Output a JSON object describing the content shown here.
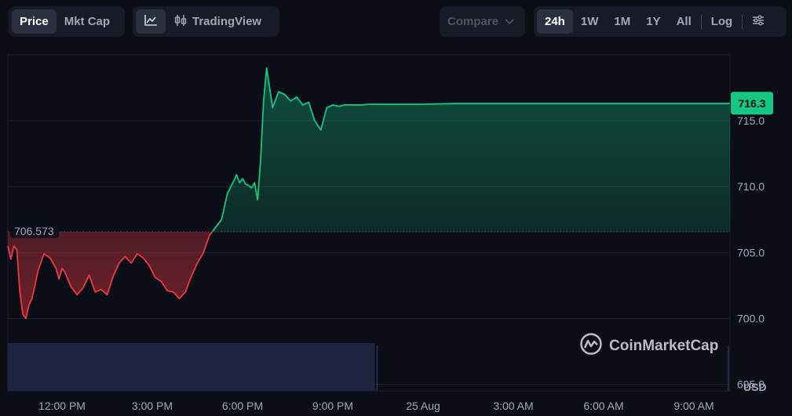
{
  "toolbar": {
    "tabs": [
      "Price",
      "Mkt Cap"
    ],
    "active_tab": "Price",
    "tradingview_label": "TradingView",
    "compare_label": "Compare",
    "ranges": [
      "24h",
      "1W",
      "1M",
      "1Y",
      "All"
    ],
    "active_range": "24h",
    "log_label": "Log"
  },
  "watermark": "CoinMarketCap",
  "colors": {
    "background": "#0b0e17",
    "up": "#16c784",
    "down": "#ea3943",
    "volume": "#1e2340"
  },
  "chart_data": {
    "type": "line",
    "reference_price": 706.573,
    "current_price_label": "716.3",
    "y_ticks": [
      "715.0",
      "710.0",
      "705.0",
      "700.0",
      "695.0"
    ],
    "y_unit": "USD",
    "ylim": [
      694.5,
      720
    ],
    "x_tick_labels": [
      "12:00 PM",
      "3:00 PM",
      "6:00 PM",
      "9:00 PM",
      "25 Aug",
      "3:00 AM",
      "6:00 AM",
      "9:00 AM"
    ],
    "x_tick_hours": [
      12,
      15,
      18,
      21,
      24,
      27,
      30,
      33
    ],
    "x_range_hours": [
      10.2,
      34.2
    ],
    "series": [
      {
        "x": [
          10.2,
          10.3,
          10.4,
          10.5,
          10.6,
          10.7,
          10.8,
          10.9,
          11.0,
          11.1,
          11.2,
          11.4,
          11.6,
          11.8,
          11.9,
          12.0,
          12.1,
          12.3,
          12.5,
          12.7,
          12.9,
          13.1,
          13.3,
          13.5,
          13.7,
          13.9,
          14.1,
          14.3,
          14.5,
          14.7,
          14.9,
          15.1,
          15.3,
          15.5,
          15.7,
          15.9,
          16.1,
          16.3,
          16.5,
          16.7,
          16.9,
          17.1,
          17.3,
          17.5,
          17.7,
          17.8,
          17.9,
          18.0,
          18.1,
          18.2,
          18.3,
          18.4,
          18.5,
          18.6,
          18.7,
          18.8,
          19.0,
          19.2,
          19.4,
          19.6,
          19.8,
          20.0,
          20.2,
          20.4,
          20.6,
          20.8,
          21.0,
          21.2,
          21.4,
          21.6,
          21.7,
          21.8,
          22.0,
          22.2,
          22.5,
          23,
          24,
          25,
          26,
          27,
          28,
          29,
          30,
          31,
          32,
          33,
          34.2
        ],
        "values": [
          705.5,
          704.5,
          705.5,
          705.2,
          702.0,
          700.3,
          700.0,
          701.0,
          701.5,
          702.5,
          703.6,
          704.9,
          704.6,
          703.8,
          703.0,
          703.8,
          703.5,
          702.4,
          701.8,
          702.3,
          703.3,
          702.0,
          702.2,
          701.8,
          703.2,
          704.2,
          704.7,
          704.2,
          704.9,
          704.6,
          704.0,
          703.1,
          702.8,
          702.1,
          702.0,
          701.5,
          702.0,
          703.2,
          704.2,
          705.0,
          706.3,
          706.9,
          707.5,
          709.5,
          710.4,
          710.9,
          710.3,
          710.6,
          710.2,
          710.1,
          709.9,
          710.3,
          709.0,
          712.0,
          716.5,
          719.0,
          716.0,
          717.2,
          717.0,
          716.5,
          716.8,
          716.2,
          716.4,
          715.0,
          714.3,
          716.0,
          716.2,
          716.1,
          716.2,
          716.2,
          716.2,
          716.2,
          716.2,
          716.25,
          716.25,
          716.25,
          716.25,
          716.3,
          716.3,
          716.3,
          716.3,
          716.3,
          716.3,
          716.3,
          716.3,
          716.3,
          716.3
        ]
      }
    ],
    "volume_range_hours": [
      10.2,
      22.4
    ]
  }
}
